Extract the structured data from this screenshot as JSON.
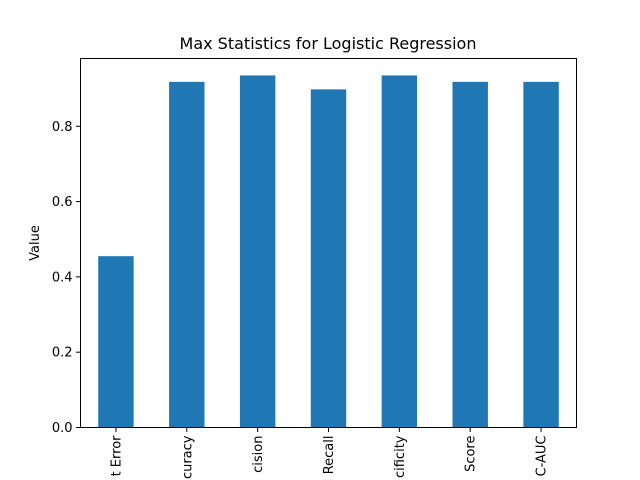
{
  "chart_data": {
    "type": "bar",
    "title": "Max Statistics for Logistic Regression",
    "xlabel": "",
    "ylabel": "Value",
    "categories": [
      "t Error",
      "curacy",
      "cision",
      "Recall",
      "cificity",
      "Score",
      "C-AUC"
    ],
    "values": [
      0.455,
      0.918,
      0.935,
      0.898,
      0.935,
      0.918,
      0.918
    ],
    "ylim": [
      0,
      0.98
    ],
    "yticks": [
      {
        "value": 0.0,
        "label": "0.0"
      },
      {
        "value": 0.2,
        "label": "0.2"
      },
      {
        "value": 0.4,
        "label": "0.4"
      },
      {
        "value": 0.6,
        "label": "0.6"
      },
      {
        "value": 0.8,
        "label": "0.8"
      }
    ],
    "bar_color": "#1f77b4",
    "grid": false,
    "legend": "none"
  }
}
